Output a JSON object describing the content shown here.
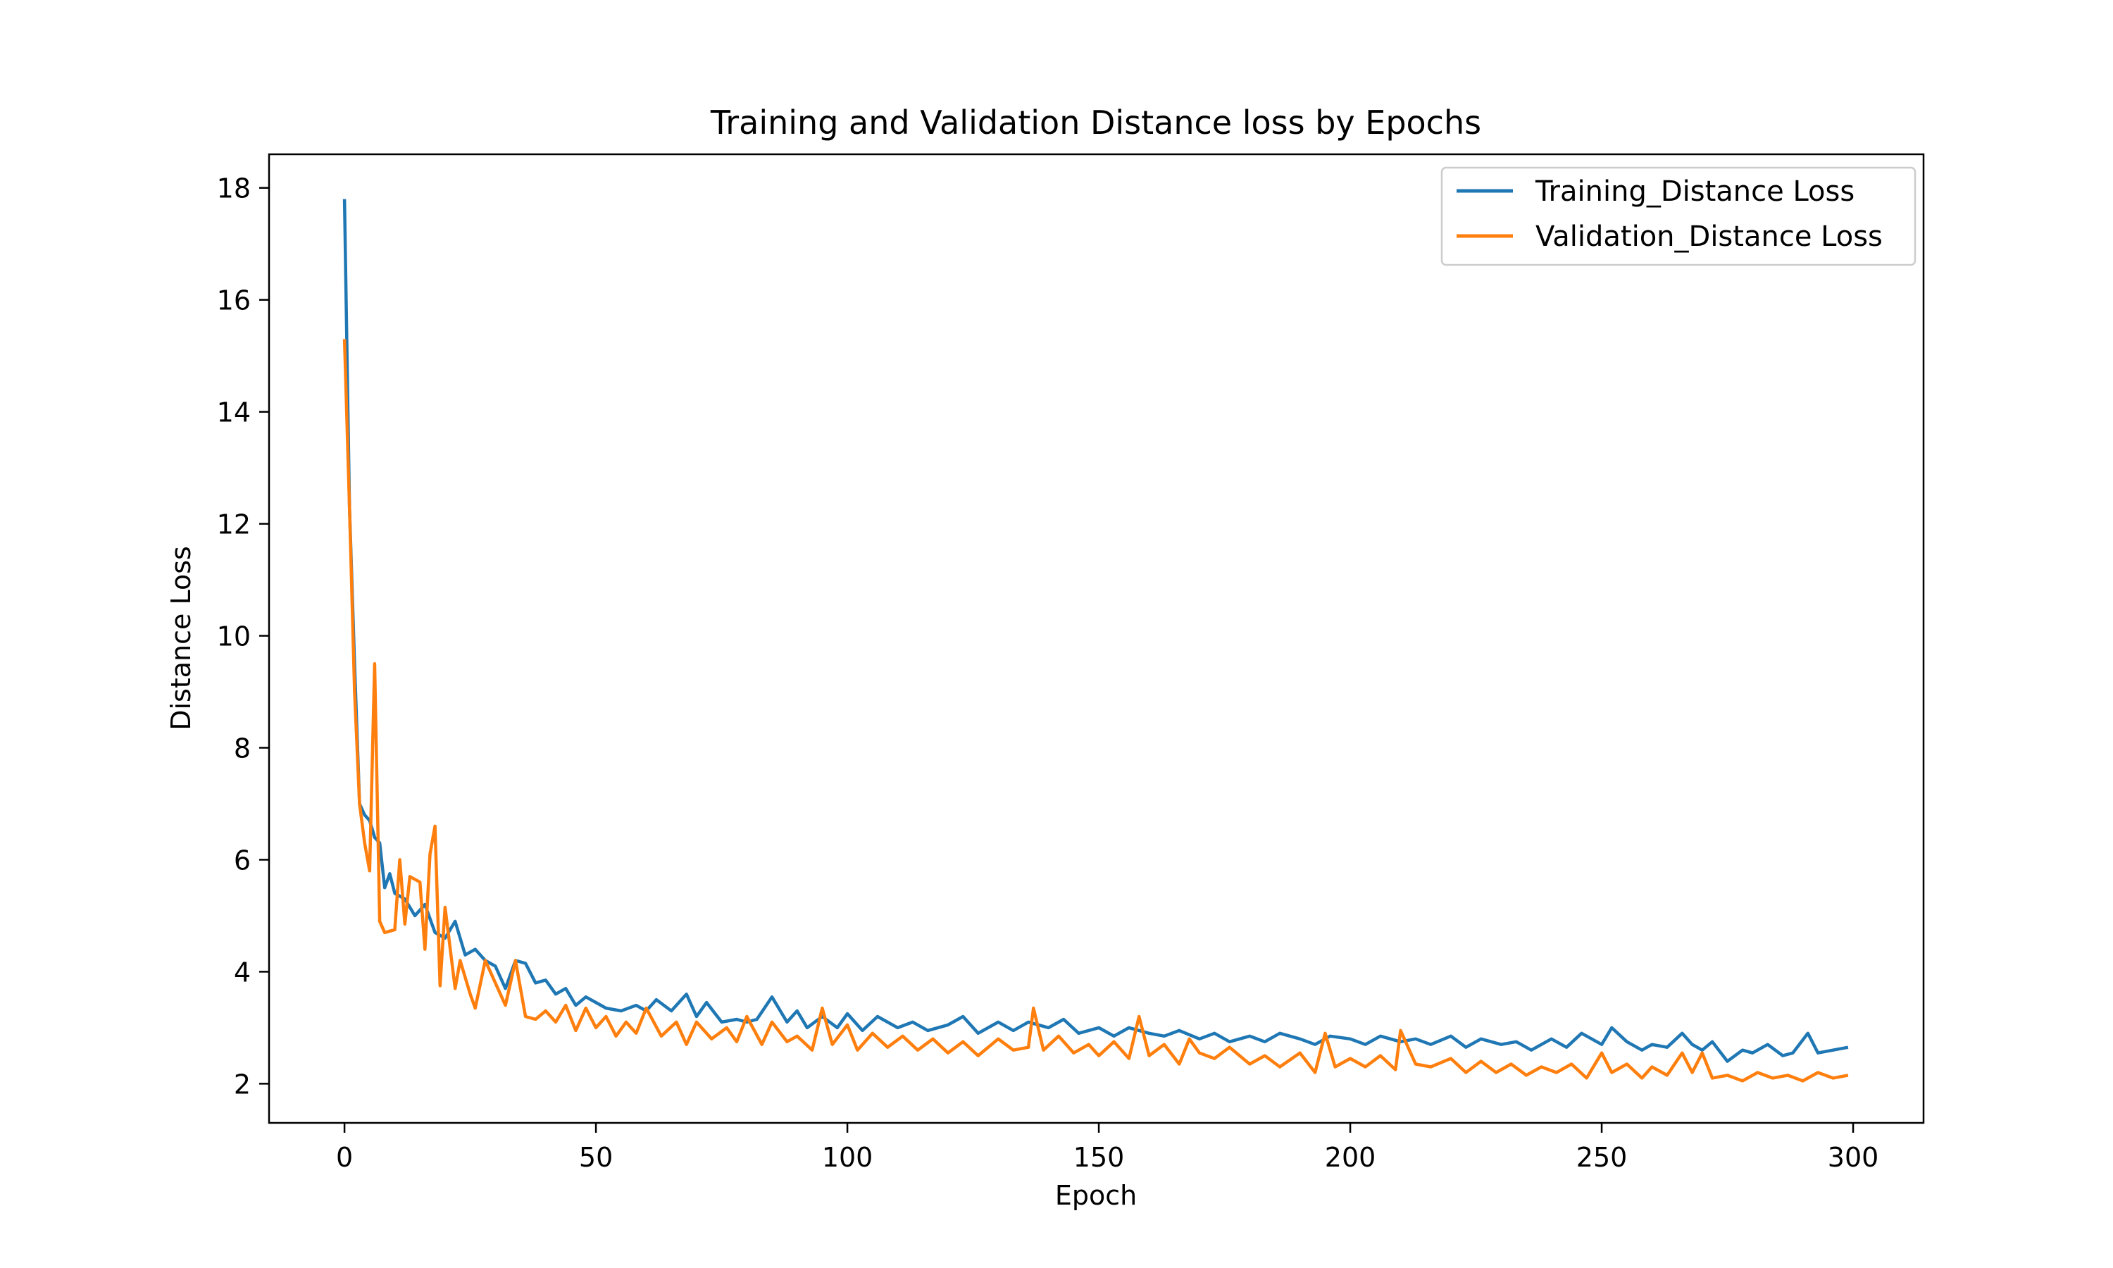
{
  "chart_data": {
    "type": "line",
    "title": "Training and Validation Distance loss by Epochs",
    "xlabel": "Epoch",
    "ylabel": "Distance Loss",
    "xlim": [
      -15,
      314
    ],
    "ylim": [
      1.3,
      18.6
    ],
    "xticks": [
      0,
      50,
      100,
      150,
      200,
      250,
      300
    ],
    "yticks": [
      2,
      4,
      6,
      8,
      10,
      12,
      14,
      16,
      18
    ],
    "grid": false,
    "legend_position": "top-right",
    "series": [
      {
        "name": "Training_Distance Loss",
        "color": "#1f77b4",
        "points": [
          [
            0,
            17.8
          ],
          [
            1,
            12.3
          ],
          [
            2,
            9.5
          ],
          [
            3,
            7.0
          ],
          [
            4,
            6.8
          ],
          [
            5,
            6.7
          ],
          [
            6,
            6.4
          ],
          [
            7,
            6.3
          ],
          [
            8,
            5.5
          ],
          [
            9,
            5.75
          ],
          [
            10,
            5.4
          ],
          [
            12,
            5.3
          ],
          [
            14,
            5.0
          ],
          [
            16,
            5.2
          ],
          [
            18,
            4.7
          ],
          [
            20,
            4.6
          ],
          [
            22,
            4.9
          ],
          [
            24,
            4.3
          ],
          [
            26,
            4.4
          ],
          [
            28,
            4.2
          ],
          [
            30,
            4.1
          ],
          [
            32,
            3.7
          ],
          [
            34,
            4.2
          ],
          [
            36,
            4.15
          ],
          [
            38,
            3.8
          ],
          [
            40,
            3.85
          ],
          [
            42,
            3.6
          ],
          [
            44,
            3.7
          ],
          [
            46,
            3.4
          ],
          [
            48,
            3.55
          ],
          [
            50,
            3.45
          ],
          [
            52,
            3.35
          ],
          [
            55,
            3.3
          ],
          [
            58,
            3.4
          ],
          [
            60,
            3.3
          ],
          [
            62,
            3.5
          ],
          [
            65,
            3.3
          ],
          [
            68,
            3.6
          ],
          [
            70,
            3.2
          ],
          [
            72,
            3.45
          ],
          [
            75,
            3.1
          ],
          [
            78,
            3.15
          ],
          [
            80,
            3.1
          ],
          [
            82,
            3.15
          ],
          [
            85,
            3.55
          ],
          [
            88,
            3.1
          ],
          [
            90,
            3.3
          ],
          [
            92,
            3.0
          ],
          [
            95,
            3.2
          ],
          [
            98,
            3.0
          ],
          [
            100,
            3.25
          ],
          [
            103,
            2.95
          ],
          [
            106,
            3.2
          ],
          [
            110,
            3.0
          ],
          [
            113,
            3.1
          ],
          [
            116,
            2.95
          ],
          [
            120,
            3.05
          ],
          [
            123,
            3.2
          ],
          [
            126,
            2.9
          ],
          [
            130,
            3.1
          ],
          [
            133,
            2.95
          ],
          [
            136,
            3.1
          ],
          [
            140,
            3.0
          ],
          [
            143,
            3.15
          ],
          [
            146,
            2.9
          ],
          [
            150,
            3.0
          ],
          [
            153,
            2.85
          ],
          [
            156,
            3.0
          ],
          [
            160,
            2.9
          ],
          [
            163,
            2.85
          ],
          [
            166,
            2.95
          ],
          [
            170,
            2.8
          ],
          [
            173,
            2.9
          ],
          [
            176,
            2.75
          ],
          [
            180,
            2.85
          ],
          [
            183,
            2.75
          ],
          [
            186,
            2.9
          ],
          [
            190,
            2.8
          ],
          [
            193,
            2.7
          ],
          [
            196,
            2.85
          ],
          [
            200,
            2.8
          ],
          [
            203,
            2.7
          ],
          [
            206,
            2.85
          ],
          [
            210,
            2.75
          ],
          [
            213,
            2.8
          ],
          [
            216,
            2.7
          ],
          [
            220,
            2.85
          ],
          [
            223,
            2.65
          ],
          [
            226,
            2.8
          ],
          [
            230,
            2.7
          ],
          [
            233,
            2.75
          ],
          [
            236,
            2.6
          ],
          [
            240,
            2.8
          ],
          [
            243,
            2.65
          ],
          [
            246,
            2.9
          ],
          [
            250,
            2.7
          ],
          [
            252,
            3.0
          ],
          [
            255,
            2.75
          ],
          [
            258,
            2.6
          ],
          [
            260,
            2.7
          ],
          [
            263,
            2.65
          ],
          [
            266,
            2.9
          ],
          [
            268,
            2.7
          ],
          [
            270,
            2.6
          ],
          [
            272,
            2.75
          ],
          [
            275,
            2.4
          ],
          [
            278,
            2.6
          ],
          [
            280,
            2.55
          ],
          [
            283,
            2.7
          ],
          [
            286,
            2.5
          ],
          [
            288,
            2.55
          ],
          [
            291,
            2.9
          ],
          [
            293,
            2.55
          ],
          [
            296,
            2.6
          ],
          [
            299,
            2.65
          ]
        ]
      },
      {
        "name": "Validation_Distance Loss",
        "color": "#ff7f0e",
        "points": [
          [
            0,
            15.3
          ],
          [
            1,
            12.3
          ],
          [
            2,
            9.0
          ],
          [
            3,
            7.0
          ],
          [
            4,
            6.3
          ],
          [
            5,
            5.8
          ],
          [
            6,
            9.5
          ],
          [
            7,
            4.9
          ],
          [
            8,
            4.7
          ],
          [
            10,
            4.75
          ],
          [
            11,
            6.0
          ],
          [
            12,
            4.85
          ],
          [
            13,
            5.7
          ],
          [
            15,
            5.6
          ],
          [
            16,
            4.4
          ],
          [
            17,
            6.1
          ],
          [
            18,
            6.6
          ],
          [
            19,
            3.75
          ],
          [
            20,
            5.15
          ],
          [
            22,
            3.7
          ],
          [
            23,
            4.2
          ],
          [
            25,
            3.6
          ],
          [
            26,
            3.35
          ],
          [
            28,
            4.2
          ],
          [
            30,
            3.8
          ],
          [
            32,
            3.4
          ],
          [
            34,
            4.2
          ],
          [
            36,
            3.2
          ],
          [
            38,
            3.15
          ],
          [
            40,
            3.3
          ],
          [
            42,
            3.1
          ],
          [
            44,
            3.4
          ],
          [
            46,
            2.95
          ],
          [
            48,
            3.35
          ],
          [
            50,
            3.0
          ],
          [
            52,
            3.2
          ],
          [
            54,
            2.85
          ],
          [
            56,
            3.1
          ],
          [
            58,
            2.9
          ],
          [
            60,
            3.35
          ],
          [
            63,
            2.85
          ],
          [
            66,
            3.1
          ],
          [
            68,
            2.7
          ],
          [
            70,
            3.1
          ],
          [
            73,
            2.8
          ],
          [
            76,
            3.0
          ],
          [
            78,
            2.75
          ],
          [
            80,
            3.2
          ],
          [
            83,
            2.7
          ],
          [
            85,
            3.1
          ],
          [
            88,
            2.75
          ],
          [
            90,
            2.85
          ],
          [
            93,
            2.6
          ],
          [
            95,
            3.35
          ],
          [
            97,
            2.7
          ],
          [
            100,
            3.05
          ],
          [
            102,
            2.6
          ],
          [
            105,
            2.9
          ],
          [
            108,
            2.65
          ],
          [
            111,
            2.85
          ],
          [
            114,
            2.6
          ],
          [
            117,
            2.8
          ],
          [
            120,
            2.55
          ],
          [
            123,
            2.75
          ],
          [
            126,
            2.5
          ],
          [
            130,
            2.8
          ],
          [
            133,
            2.6
          ],
          [
            136,
            2.65
          ],
          [
            137,
            3.35
          ],
          [
            139,
            2.6
          ],
          [
            142,
            2.85
          ],
          [
            145,
            2.55
          ],
          [
            148,
            2.7
          ],
          [
            150,
            2.5
          ],
          [
            153,
            2.75
          ],
          [
            156,
            2.45
          ],
          [
            158,
            3.2
          ],
          [
            160,
            2.5
          ],
          [
            163,
            2.7
          ],
          [
            166,
            2.35
          ],
          [
            168,
            2.8
          ],
          [
            170,
            2.55
          ],
          [
            173,
            2.45
          ],
          [
            176,
            2.65
          ],
          [
            180,
            2.35
          ],
          [
            183,
            2.5
          ],
          [
            186,
            2.3
          ],
          [
            190,
            2.55
          ],
          [
            193,
            2.2
          ],
          [
            195,
            2.9
          ],
          [
            197,
            2.3
          ],
          [
            200,
            2.45
          ],
          [
            203,
            2.3
          ],
          [
            206,
            2.5
          ],
          [
            209,
            2.25
          ],
          [
            210,
            2.95
          ],
          [
            213,
            2.35
          ],
          [
            216,
            2.3
          ],
          [
            220,
            2.45
          ],
          [
            223,
            2.2
          ],
          [
            226,
            2.4
          ],
          [
            229,
            2.2
          ],
          [
            232,
            2.35
          ],
          [
            235,
            2.15
          ],
          [
            238,
            2.3
          ],
          [
            241,
            2.2
          ],
          [
            244,
            2.35
          ],
          [
            247,
            2.1
          ],
          [
            250,
            2.55
          ],
          [
            252,
            2.2
          ],
          [
            255,
            2.35
          ],
          [
            258,
            2.1
          ],
          [
            260,
            2.3
          ],
          [
            263,
            2.15
          ],
          [
            266,
            2.55
          ],
          [
            268,
            2.2
          ],
          [
            270,
            2.55
          ],
          [
            272,
            2.1
          ],
          [
            275,
            2.15
          ],
          [
            278,
            2.05
          ],
          [
            281,
            2.2
          ],
          [
            284,
            2.1
          ],
          [
            287,
            2.15
          ],
          [
            290,
            2.05
          ],
          [
            293,
            2.2
          ],
          [
            296,
            2.1
          ],
          [
            299,
            2.15
          ]
        ]
      }
    ]
  }
}
